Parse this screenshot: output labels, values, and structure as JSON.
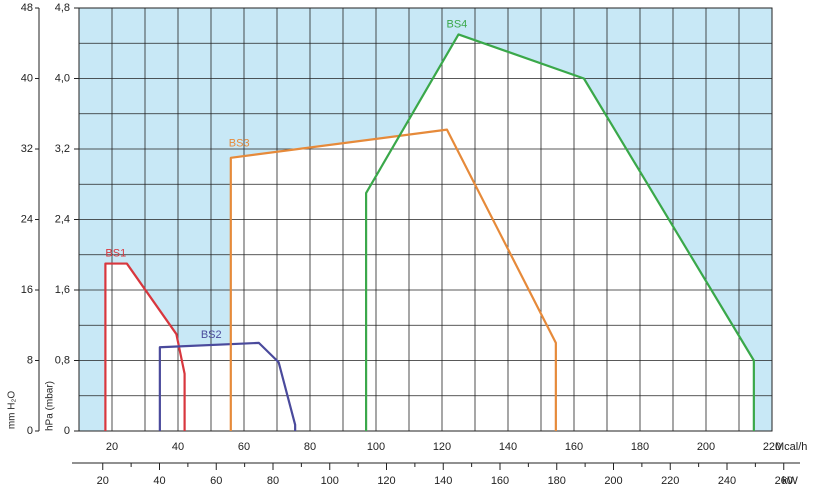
{
  "chart_data": {
    "type": "line",
    "x_label": "Mcal/h",
    "x2_label": "kW",
    "y_label": "hPa (mbar)",
    "y2_label": "mm H₂O",
    "xlim": [
      10,
      220
    ],
    "xticks": [
      20,
      40,
      60,
      80,
      100,
      120,
      140,
      160,
      180,
      200,
      220
    ],
    "xminor": [
      10,
      30,
      50,
      70,
      90,
      110,
      130,
      150,
      170,
      190,
      210
    ],
    "x2lim": [
      11.63,
      255.86
    ],
    "x2ticks": [
      20,
      40,
      60,
      80,
      100,
      120,
      140,
      160,
      180,
      200,
      220,
      240,
      260
    ],
    "x2minor": [
      30,
      50,
      70,
      90,
      110,
      130,
      150,
      170,
      190,
      210,
      230,
      250
    ],
    "ylim": [
      0,
      4.8
    ],
    "yticks": [
      0,
      {
        "value": 0.8,
        "label": "0,8"
      },
      {
        "value": 1.6,
        "label": "1,6"
      },
      {
        "value": 2.4,
        "label": "2,4"
      },
      {
        "value": 3.2,
        "label": "3,2"
      },
      {
        "value": 4.0,
        "label": "4,0"
      },
      {
        "value": 4.8,
        "label": "4,8"
      }
    ],
    "yminor": [
      0.4,
      1.2,
      2.0,
      2.8,
      3.6,
      4.4
    ],
    "y2lim": [
      0,
      48
    ],
    "y2ticks": [
      0,
      8,
      16,
      24,
      32,
      40,
      48
    ],
    "grid": true,
    "outside_color": "#c8e8f6",
    "series": [
      {
        "name": "BS1",
        "color": "#d8373e",
        "x": [
          18,
          18,
          24.5,
          39.5,
          42,
          42
        ],
        "values": [
          0,
          1.9,
          1.9,
          1.1,
          0.65,
          0
        ]
      },
      {
        "name": "BS2",
        "color": "#4a4a9c",
        "x": [
          34.5,
          34.5,
          64.5,
          70.5,
          75.5,
          75.5
        ],
        "values": [
          0,
          0.95,
          1.0,
          0.78,
          0.07,
          0
        ]
      },
      {
        "name": "BS3",
        "color": "#e68a3a",
        "x": [
          56,
          56,
          121.5,
          154.5,
          154.5
        ],
        "values": [
          0,
          3.1,
          3.42,
          1.0,
          0
        ]
      },
      {
        "name": "BS4",
        "color": "#3aa84a",
        "x": [
          97,
          97,
          125,
          163,
          214.5,
          214.5
        ],
        "values": [
          0,
          2.7,
          4.5,
          4.0,
          0.8,
          0
        ]
      }
    ]
  }
}
